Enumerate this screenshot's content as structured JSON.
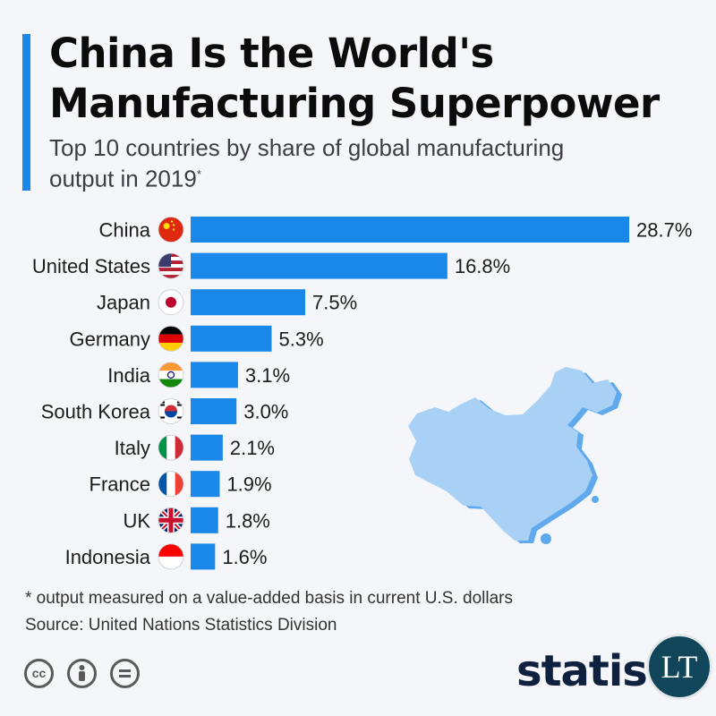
{
  "header": {
    "title_line1": "China Is the World's",
    "title_line2": "Manufacturing Superpower",
    "subtitle_line1": "Top 10 countries by share of global manufacturing",
    "subtitle_line2": "output in 2019",
    "subtitle_mark": "*"
  },
  "chart_data": {
    "type": "bar",
    "orientation": "horizontal",
    "title": "China Is the World's Manufacturing Superpower",
    "categories": [
      "China",
      "United States",
      "Japan",
      "Germany",
      "India",
      "South Korea",
      "Italy",
      "France",
      "UK",
      "Indonesia"
    ],
    "values": [
      28.7,
      16.8,
      7.5,
      5.3,
      3.1,
      3.0,
      2.1,
      1.9,
      1.8,
      1.6
    ],
    "value_labels": [
      "28.7%",
      "16.8%",
      "7.5%",
      "5.3%",
      "3.1%",
      "3.0%",
      "2.1%",
      "1.9%",
      "1.8%",
      "1.6%"
    ],
    "unit": "%",
    "flags": [
      "china-flag-icon",
      "us-flag-icon",
      "japan-flag-icon",
      "germany-flag-icon",
      "india-flag-icon",
      "south-korea-flag-icon",
      "italy-flag-icon",
      "france-flag-icon",
      "uk-flag-icon",
      "indonesia-flag-icon"
    ],
    "bar_color": "#1a88e8",
    "grid": false
  },
  "footer": {
    "footnote": "* output measured on a value-added basis in current U.S. dollars",
    "source": "Source: United Nations Statistics Division",
    "brand": "statista",
    "badge": "LT",
    "license_icons": [
      "cc-icon",
      "attribution-icon",
      "no-derivatives-icon"
    ]
  },
  "colors": {
    "accent": "#1a88e8",
    "map_fill": "#a9d1f5",
    "map_edge": "#5fa9ec",
    "brand": "#0e2240",
    "badge_bg": "#10455a"
  }
}
